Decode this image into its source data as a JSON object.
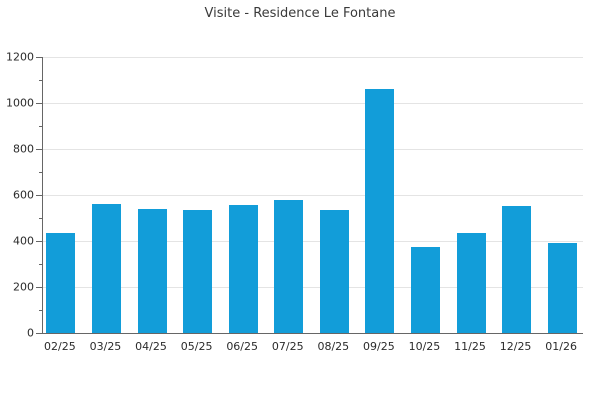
{
  "figure": {
    "background": "#ffffff"
  },
  "chart_data": {
    "type": "bar",
    "title": "Visite - Residence Le Fontane",
    "categories": [
      "02/25",
      "03/25",
      "04/25",
      "05/25",
      "06/25",
      "07/25",
      "08/25",
      "09/25",
      "10/25",
      "11/25",
      "12/25",
      "01/26"
    ],
    "values": [
      437,
      561,
      539,
      533,
      555,
      578,
      535,
      1063,
      374,
      436,
      551,
      393
    ],
    "xlabel": "",
    "ylabel": "",
    "ylim": [
      0,
      1200
    ],
    "yticks": [
      0,
      200,
      400,
      600,
      800,
      1000,
      1200
    ],
    "minor_yticks": [
      100,
      300,
      500,
      700,
      900,
      1100
    ],
    "grid": "horizontal-major-only",
    "legend": "none",
    "colors": {
      "bar": "#129dd9",
      "grid": "#e4e4e4",
      "axis": "#666666",
      "title_text": "#3a3a3a",
      "tick_text": "#2b2b2b"
    }
  }
}
